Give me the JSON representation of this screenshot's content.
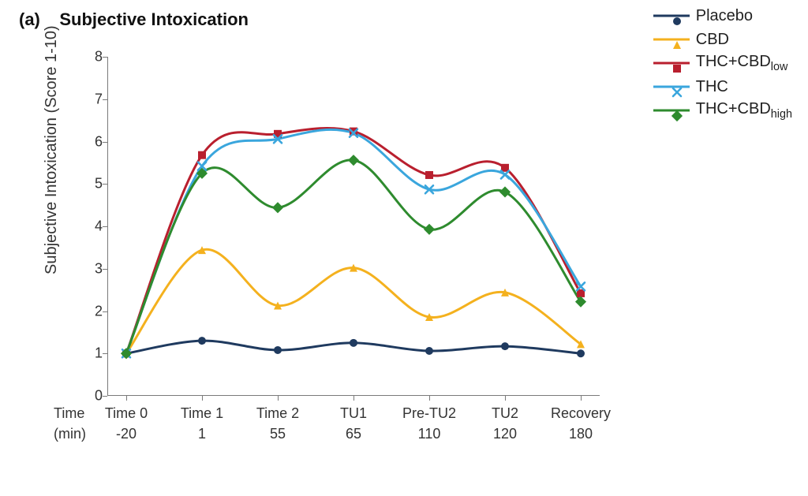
{
  "panel": {
    "tag": "(a)",
    "title": "Subjective Intoxication"
  },
  "chart": {
    "type": "line",
    "background_color": "#ffffff",
    "axis_color": "#7a7a7a",
    "label_color": "#333333",
    "title_fontsize": 22,
    "axis_fontsize": 20,
    "tick_fontsize": 18,
    "legend_fontsize": 20,
    "line_width": 3,
    "marker_size": 10,
    "y": {
      "label": "Subjective Intoxication  (Score 1-10)",
      "lim": [
        0,
        8
      ],
      "tick_step": 1,
      "ticks": [
        0,
        1,
        2,
        3,
        4,
        5,
        6,
        7,
        8
      ]
    },
    "x": {
      "lead_top": "Time",
      "lead_bottom": "(min)",
      "categories_top": [
        "Time 0",
        "Time 1",
        "Time 2",
        "TU1",
        "Pre-TU2",
        "TU2",
        "Recovery"
      ],
      "categories_bottom": [
        "-20",
        "1",
        "55",
        "65",
        "110",
        "120",
        "180"
      ],
      "n": 7
    },
    "series": [
      {
        "key": "placebo",
        "label": "Placebo",
        "color": "#1f3a5f",
        "marker": "circle",
        "values": [
          1.0,
          1.3,
          1.08,
          1.25,
          1.06,
          1.17,
          1.0
        ]
      },
      {
        "key": "cbd",
        "label": "CBD",
        "color": "#f4b11e",
        "marker": "triangle",
        "values": [
          1.0,
          3.44,
          2.13,
          3.02,
          1.86,
          2.44,
          1.22
        ]
      },
      {
        "key": "thc_cbd_low",
        "label": "THC+CBD",
        "sub": "low",
        "color": "#b91f2e",
        "marker": "square",
        "values": [
          1.0,
          5.68,
          6.18,
          6.24,
          5.21,
          5.38,
          2.42
        ]
      },
      {
        "key": "thc",
        "label": "THC",
        "color": "#3aa6dd",
        "marker": "xmark",
        "values": [
          1.0,
          5.42,
          6.06,
          6.2,
          4.87,
          5.22,
          2.58
        ]
      },
      {
        "key": "thc_cbd_high",
        "label": "THC+CBD",
        "sub": "high",
        "color": "#2e8b2e",
        "marker": "diamond",
        "values": [
          1.0,
          5.25,
          4.44,
          5.56,
          3.93,
          4.81,
          2.22
        ]
      }
    ],
    "legend": {
      "position": "top-right",
      "dash_len": 46
    }
  }
}
